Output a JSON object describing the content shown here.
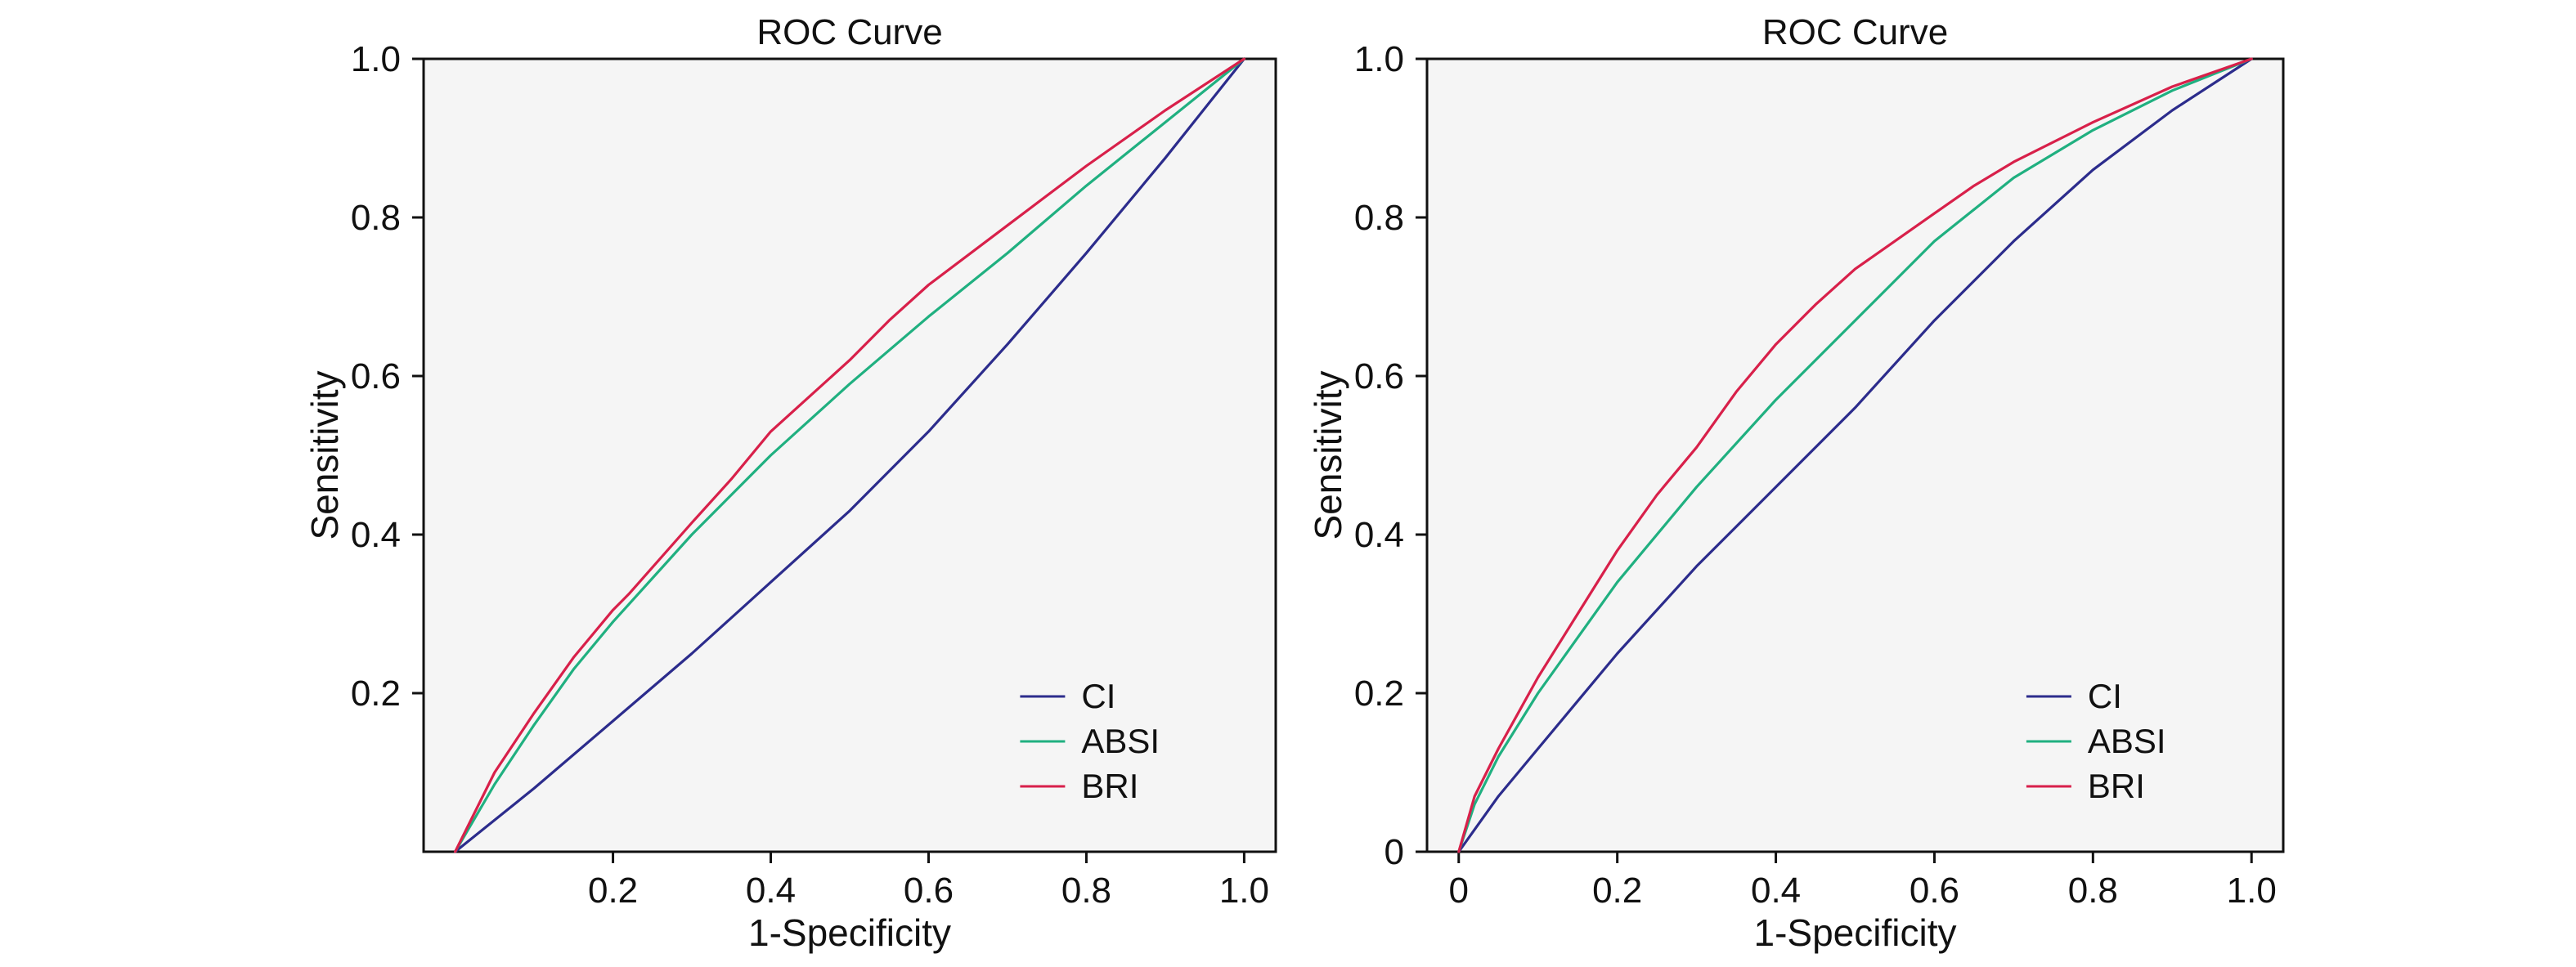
{
  "chart_data": [
    {
      "type": "line",
      "title": "ROC Curve",
      "xlabel": "1-Specificity",
      "ylabel": "Sensitivity",
      "xlim": [
        -0.04,
        1.04
      ],
      "ylim": [
        0,
        1
      ],
      "x_ticks": [
        {
          "value": 0.2,
          "label": "0.2"
        },
        {
          "value": 0.4,
          "label": "0.4"
        },
        {
          "value": 0.6,
          "label": "0.6"
        },
        {
          "value": 0.8,
          "label": "0.8"
        },
        {
          "value": 1.0,
          "label": "1.0"
        }
      ],
      "y_ticks": [
        {
          "value": 0.2,
          "label": "0.2"
        },
        {
          "value": 0.4,
          "label": "0.4"
        },
        {
          "value": 0.6,
          "label": "0.6"
        },
        {
          "value": 0.8,
          "label": "0.8"
        },
        {
          "value": 1.0,
          "label": "1.0"
        }
      ],
      "legend_position": "bottom-right",
      "grid": false,
      "series": [
        {
          "name": "CI",
          "color": "#2c2c8c",
          "x": [
            0,
            0.1,
            0.2,
            0.3,
            0.4,
            0.5,
            0.6,
            0.7,
            0.8,
            0.9,
            1.0
          ],
          "y": [
            0,
            0.08,
            0.165,
            0.25,
            0.34,
            0.43,
            0.53,
            0.64,
            0.755,
            0.875,
            1.0
          ]
        },
        {
          "name": "ABSI",
          "color": "#20b080",
          "x": [
            0,
            0.05,
            0.1,
            0.15,
            0.2,
            0.3,
            0.4,
            0.5,
            0.6,
            0.7,
            0.8,
            0.9,
            1.0
          ],
          "y": [
            0,
            0.085,
            0.16,
            0.23,
            0.29,
            0.4,
            0.5,
            0.59,
            0.675,
            0.755,
            0.84,
            0.92,
            1.0
          ]
        },
        {
          "name": "BRI",
          "color": "#d8204a",
          "x": [
            0,
            0.05,
            0.1,
            0.15,
            0.2,
            0.22,
            0.3,
            0.35,
            0.4,
            0.5,
            0.55,
            0.6,
            0.7,
            0.8,
            0.9,
            1.0
          ],
          "y": [
            0,
            0.1,
            0.175,
            0.245,
            0.305,
            0.325,
            0.415,
            0.47,
            0.53,
            0.62,
            0.67,
            0.715,
            0.79,
            0.865,
            0.935,
            1.0
          ]
        }
      ]
    },
    {
      "type": "line",
      "title": "ROC Curve",
      "xlabel": "1-Specificity",
      "ylabel": "Sensitivity",
      "xlim": [
        -0.04,
        1.04
      ],
      "ylim": [
        0,
        1
      ],
      "x_ticks": [
        {
          "value": 0,
          "label": "0"
        },
        {
          "value": 0.2,
          "label": "0.2"
        },
        {
          "value": 0.4,
          "label": "0.4"
        },
        {
          "value": 0.6,
          "label": "0.6"
        },
        {
          "value": 0.8,
          "label": "0.8"
        },
        {
          "value": 1.0,
          "label": "1.0"
        }
      ],
      "y_ticks": [
        {
          "value": 0,
          "label": "0"
        },
        {
          "value": 0.2,
          "label": "0.2"
        },
        {
          "value": 0.4,
          "label": "0.4"
        },
        {
          "value": 0.6,
          "label": "0.6"
        },
        {
          "value": 0.8,
          "label": "0.8"
        },
        {
          "value": 1.0,
          "label": "1.0"
        }
      ],
      "legend_position": "bottom-right",
      "grid": false,
      "series": [
        {
          "name": "CI",
          "color": "#2c2c8c",
          "x": [
            0,
            0.05,
            0.1,
            0.15,
            0.2,
            0.3,
            0.4,
            0.5,
            0.6,
            0.7,
            0.8,
            0.9,
            1.0
          ],
          "y": [
            0,
            0.07,
            0.13,
            0.19,
            0.25,
            0.36,
            0.46,
            0.56,
            0.67,
            0.77,
            0.86,
            0.935,
            1.0
          ]
        },
        {
          "name": "ABSI",
          "color": "#20b080",
          "x": [
            0,
            0.02,
            0.05,
            0.1,
            0.15,
            0.2,
            0.3,
            0.4,
            0.5,
            0.6,
            0.7,
            0.8,
            0.9,
            1.0
          ],
          "y": [
            0,
            0.06,
            0.12,
            0.2,
            0.27,
            0.34,
            0.46,
            0.57,
            0.67,
            0.77,
            0.85,
            0.91,
            0.96,
            1.0
          ]
        },
        {
          "name": "BRI",
          "color": "#d8204a",
          "x": [
            0,
            0.02,
            0.05,
            0.1,
            0.15,
            0.2,
            0.25,
            0.3,
            0.35,
            0.4,
            0.45,
            0.5,
            0.55,
            0.6,
            0.65,
            0.7,
            0.8,
            0.9,
            1.0
          ],
          "y": [
            0,
            0.07,
            0.13,
            0.22,
            0.3,
            0.38,
            0.45,
            0.51,
            0.58,
            0.64,
            0.69,
            0.735,
            0.77,
            0.805,
            0.84,
            0.87,
            0.92,
            0.965,
            1.0
          ]
        }
      ]
    }
  ]
}
